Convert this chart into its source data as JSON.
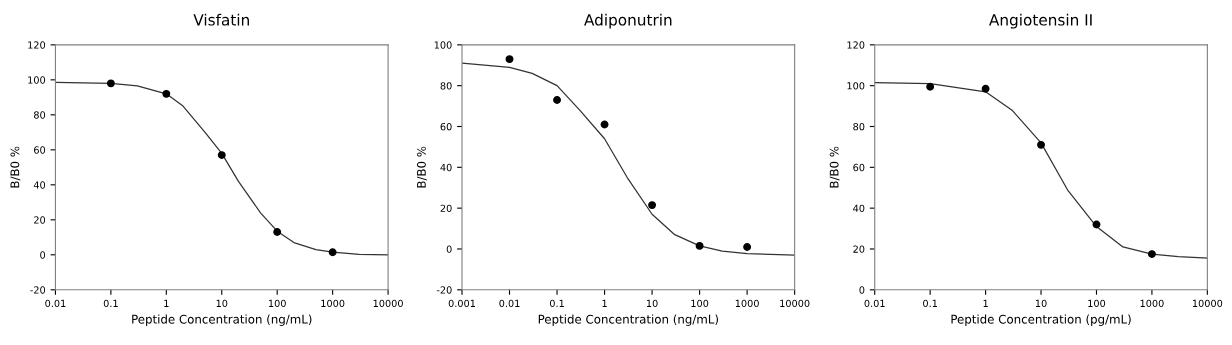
{
  "chart_data": [
    {
      "type": "scatter",
      "title": "Visfatin",
      "xlabel": "Peptide Concentration (ng/mL)",
      "ylabel": "B/B0 %",
      "log": "x",
      "xlim": [
        0.01,
        10000
      ],
      "xticks": [
        0.01,
        0.1,
        1,
        10,
        100,
        1000,
        10000
      ],
      "ylim": [
        -20,
        120
      ],
      "yticks": [
        -20,
        0,
        20,
        40,
        60,
        80,
        100,
        120
      ],
      "grid": false,
      "series": [
        {
          "marker": "circle",
          "color": "#000000",
          "x": [
            0.1,
            1,
            10,
            100,
            1000
          ],
          "values": [
            98,
            92,
            57,
            13,
            1.5
          ]
        },
        {
          "type": "line",
          "marker": "none",
          "color": "#333333",
          "x": [
            0.01,
            0.1,
            0.3,
            1,
            2,
            5,
            10,
            20,
            50,
            100,
            200,
            500,
            1000,
            3000,
            10000
          ],
          "values": [
            98.5,
            98,
            96.5,
            92,
            85,
            70,
            58,
            42,
            24,
            13.5,
            7,
            3,
            1.5,
            0.3,
            0
          ]
        }
      ]
    },
    {
      "type": "scatter",
      "title": "Adiponutrin",
      "xlabel": "Peptide Concentration (ng/mL)",
      "ylabel": "B/B0 %",
      "log": "x",
      "xlim": [
        0.001,
        10000
      ],
      "xticks": [
        0.001,
        0.01,
        0.1,
        1,
        10,
        100,
        1000,
        10000
      ],
      "ylim": [
        -20,
        100
      ],
      "yticks": [
        -20,
        0,
        20,
        40,
        60,
        80,
        100
      ],
      "grid": false,
      "series": [
        {
          "marker": "circle",
          "color": "#000000",
          "x": [
            0.01,
            0.1,
            1,
            10,
            100,
            1000
          ],
          "values": [
            93,
            73,
            61,
            21.5,
            1.5,
            1
          ]
        },
        {
          "type": "line",
          "marker": "none",
          "color": "#333333",
          "x": [
            0.001,
            0.01,
            0.03,
            0.1,
            0.3,
            1,
            3,
            10,
            30,
            100,
            300,
            1000,
            10000
          ],
          "values": [
            91,
            89,
            86,
            80,
            68,
            54,
            35,
            17,
            7,
            1.5,
            -1,
            -2.3,
            -3
          ]
        }
      ]
    },
    {
      "type": "scatter",
      "title": "Angiotensin II",
      "xlabel": "Peptide Concentration (pg/mL)",
      "ylabel": "B/B0 %",
      "log": "x",
      "xlim": [
        0.01,
        10000
      ],
      "xticks": [
        0.01,
        0.1,
        1,
        10,
        100,
        1000,
        10000
      ],
      "ylim": [
        0,
        120
      ],
      "yticks": [
        0,
        20,
        40,
        60,
        80,
        100,
        120
      ],
      "grid": false,
      "series": [
        {
          "marker": "circle",
          "color": "#000000",
          "x": [
            0.1,
            1,
            10,
            100,
            1000
          ],
          "values": [
            99.5,
            98.5,
            71,
            32,
            17.5
          ]
        },
        {
          "type": "line",
          "marker": "none",
          "color": "#333333",
          "x": [
            0.01,
            0.1,
            1,
            3,
            10,
            30,
            100,
            300,
            1000,
            3000,
            10000
          ],
          "values": [
            101.5,
            101,
            97,
            88,
            72,
            49,
            31,
            21,
            17.5,
            16.3,
            15.5
          ]
        }
      ]
    }
  ]
}
